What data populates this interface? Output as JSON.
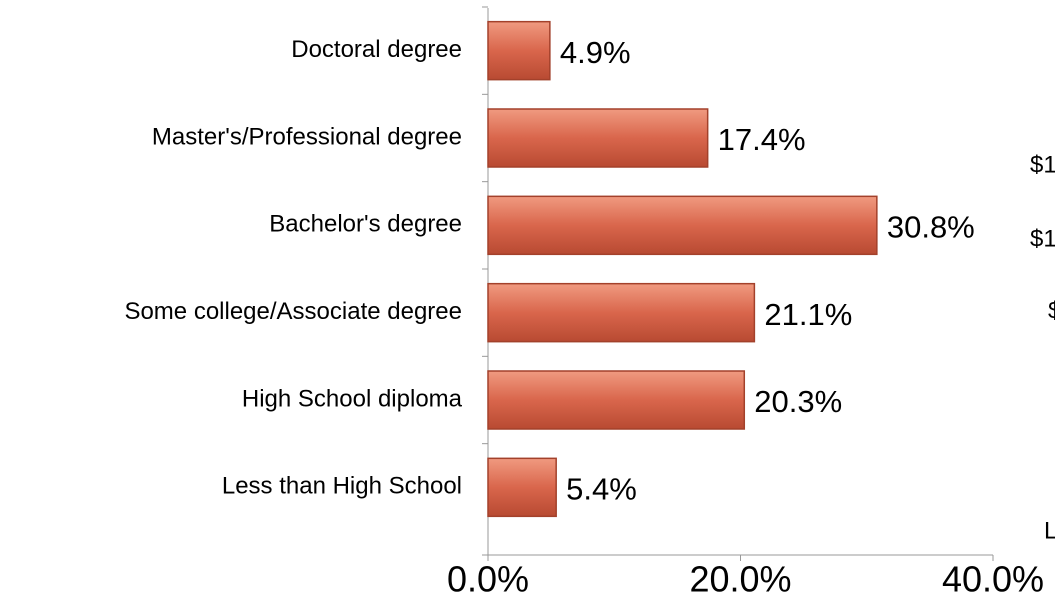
{
  "chart_data": {
    "type": "bar",
    "orientation": "horizontal",
    "categories": [
      "Doctoral degree",
      "Master's/Professional degree",
      "Bachelor's degree",
      "Some college/Associate degree",
      "High School diploma",
      "Less than High School"
    ],
    "values": [
      4.9,
      17.4,
      30.8,
      21.1,
      20.3,
      5.4
    ],
    "value_labels": [
      "4.9%",
      "17.4%",
      "30.8%",
      "21.1%",
      "20.3%",
      "5.4%"
    ],
    "color": "#d9664c",
    "xlim": [
      0,
      40
    ],
    "xticks": [
      {
        "value": 0,
        "label": "0.0%"
      },
      {
        "value": 20,
        "label": "20.0%"
      },
      {
        "value": 40,
        "label": "40.0%"
      }
    ],
    "grid": false,
    "annotations": [
      "$1",
      "$1",
      "$",
      "L"
    ]
  }
}
